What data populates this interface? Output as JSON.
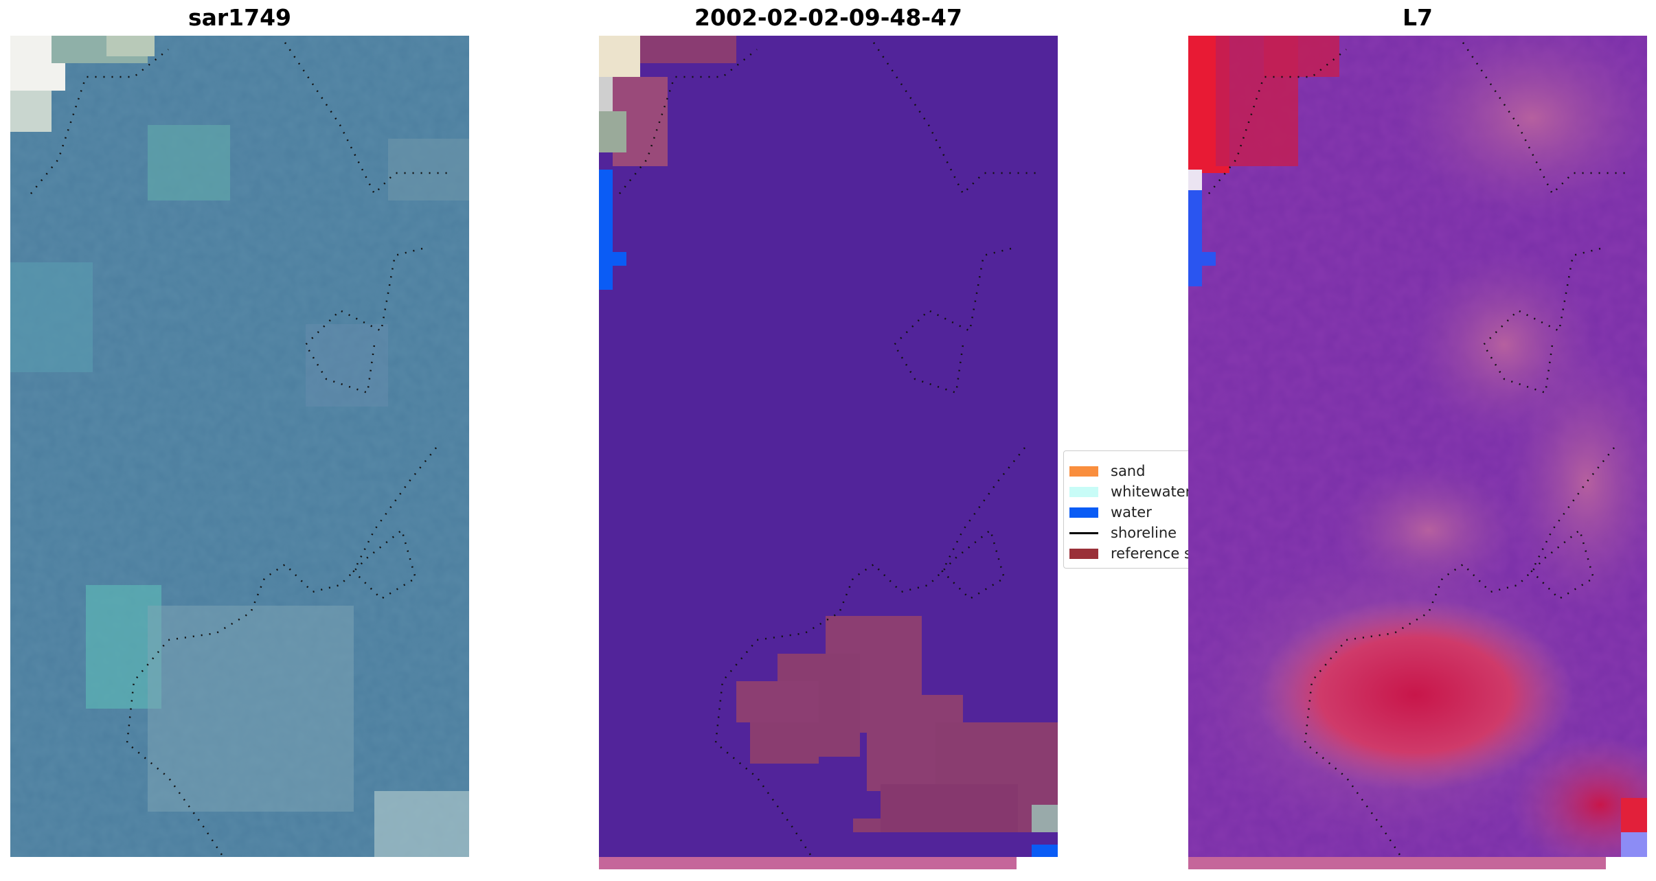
{
  "panels": [
    {
      "title": "sar1749"
    },
    {
      "title": "2002-02-02-09-48-47"
    },
    {
      "title": "L7"
    }
  ],
  "legend": {
    "entries": [
      {
        "label": "sand",
        "color": "#f98e3e"
      },
      {
        "label": "whitewater",
        "color": "#c8fcf7"
      },
      {
        "label": "water",
        "color": "#0a5cf5"
      },
      {
        "label": "shoreline",
        "color": "#000000"
      },
      {
        "label": "reference shoreline",
        "color": "#9a3038"
      }
    ]
  },
  "colors": {
    "satellite_base": "#4b7e9e",
    "classified_background": "#52249a",
    "classified_patch": "#8c3e72",
    "index_base": "#7a2fa6",
    "index_hot": "#c8164a",
    "bottom_strip": "#c5669a"
  }
}
